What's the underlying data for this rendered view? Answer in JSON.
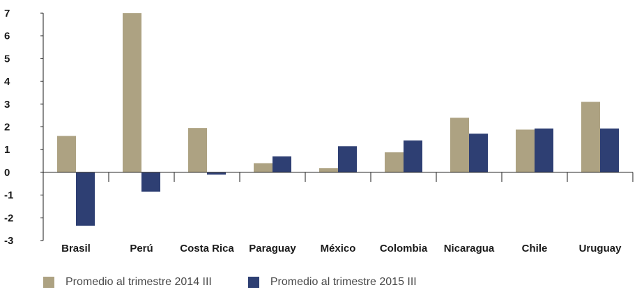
{
  "colors": {
    "series_2014": "#ADA282",
    "series_2015": "#2E3F73"
  },
  "chart_data": {
    "type": "bar",
    "categories": [
      "Brasil",
      "Perú",
      "Costa Rica",
      "Paraguay",
      "México",
      "Colombia",
      "Nicaragua",
      "Chile",
      "Uruguay"
    ],
    "series": [
      {
        "name": "Promedio al trimestre 2014 III",
        "values": [
          1.6,
          7.0,
          1.95,
          0.4,
          0.18,
          0.88,
          2.4,
          1.88,
          3.1
        ]
      },
      {
        "name": "Promedio al trimestre 2015 III",
        "values": [
          -2.35,
          -0.85,
          -0.1,
          0.7,
          1.15,
          1.4,
          1.7,
          1.93,
          1.93
        ]
      }
    ],
    "ylim": [
      -3,
      7
    ],
    "yticks": [
      7,
      6,
      5,
      4,
      3,
      2,
      1,
      0,
      -1,
      -2,
      -3
    ],
    "title": "",
    "xlabel": "",
    "ylabel": "",
    "grid": false,
    "legend_position": "bottom"
  }
}
